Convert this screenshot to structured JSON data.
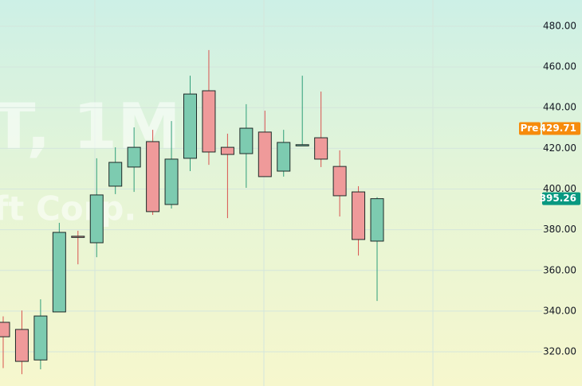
{
  "chart_data": {
    "type": "candlestick",
    "watermark": [
      "T, 1M",
      "ft Corp."
    ],
    "ylim": [
      303.2,
      492.9
    ],
    "yticks": [
      {
        "value": 320,
        "label": "320.00"
      },
      {
        "value": 340,
        "label": "340.00"
      },
      {
        "value": 360,
        "label": "360.00"
      },
      {
        "value": 380,
        "label": "380.00"
      },
      {
        "value": 400,
        "label": "400.00"
      },
      {
        "value": 420,
        "label": "420.00"
      },
      {
        "value": 440,
        "label": "440.00"
      },
      {
        "value": 460,
        "label": "460.00"
      },
      {
        "value": 480,
        "label": "480.00"
      }
    ],
    "grid": true,
    "up_color": "#7dcbb0",
    "down_color": "#ef9a9a",
    "open": [
      334.5,
      331,
      316,
      339.6,
      376.8,
      373.6,
      401.4,
      410.8,
      423.3,
      392.4,
      415.1,
      448.3,
      420.5,
      417.4,
      428,
      408.8,
      421.6,
      425.2,
      411.1,
      398.6,
      374.4
    ],
    "high": [
      337.4,
      340.3,
      345.8,
      383.4,
      379.5,
      415.1,
      420.5,
      430.3,
      429.1,
      433.4,
      455.7,
      468.3,
      427.2,
      441.7,
      438.5,
      429.1,
      455.7,
      447.9,
      419,
      401.4,
      396
    ],
    "low": [
      312,
      309,
      311.4,
      339.6,
      363,
      366.5,
      397.5,
      398.6,
      387.3,
      390.4,
      408.8,
      411.9,
      385.7,
      400.6,
      406.1,
      406.1,
      421.3,
      410.8,
      386.5,
      367.3,
      345
    ],
    "close": [
      327.4,
      315.3,
      337.6,
      378.7,
      376.3,
      397.1,
      413.1,
      420.5,
      388.9,
      414.7,
      446.7,
      418.2,
      417,
      429.9,
      406.1,
      422.9,
      421.8,
      414.7,
      396.7,
      375.2,
      395.26
    ],
    "price_labels": [
      {
        "label": "Pre",
        "value": 429.71,
        "color": "#f68b0c"
      },
      {
        "value": 395.26,
        "color": "#089981"
      }
    ]
  }
}
